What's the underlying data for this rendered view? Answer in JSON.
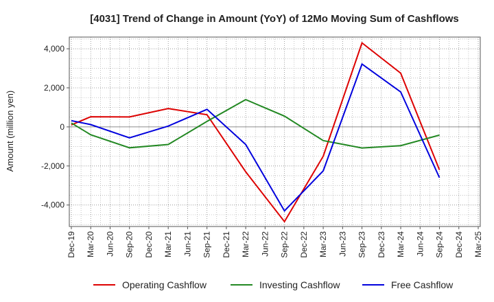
{
  "chart_data": {
    "type": "line",
    "title": "[4031]  Trend of Change in Amount (YoY) of 12Mo Moving Sum of Cashflows",
    "xlabel": "",
    "ylabel": "Amount (million yen)",
    "ylim": [
      -5100,
      4600
    ],
    "yticks": [
      4000,
      2000,
      0,
      -2000,
      -4000
    ],
    "ytick_labels": [
      "4,000",
      "2,000",
      "0",
      "-2,000",
      "-4,000"
    ],
    "grid": true,
    "legend_position": "bottom",
    "categories": [
      "Dec-19",
      "Mar-20",
      "Jun-20",
      "Sep-20",
      "Dec-20",
      "Mar-21",
      "Jun-21",
      "Sep-21",
      "Dec-21",
      "Mar-22",
      "Jun-22",
      "Sep-22",
      "Dec-22",
      "Mar-23",
      "Jun-23",
      "Sep-23",
      "Dec-23",
      "Mar-24",
      "Jun-24",
      "Sep-24",
      "Dec-24",
      "Mar-25"
    ],
    "series": [
      {
        "name": "Operating Cashflow",
        "color": "#dd0000",
        "values": [
          100,
          520,
          null,
          510,
          null,
          940,
          null,
          620,
          null,
          -2300,
          null,
          -4850,
          null,
          -1500,
          null,
          4300,
          null,
          2750,
          null,
          -2200,
          null,
          null
        ]
      },
      {
        "name": "Investing Cashflow",
        "color": "#228822",
        "values": [
          200,
          -400,
          null,
          -1070,
          null,
          -900,
          null,
          280,
          null,
          1400,
          null,
          550,
          null,
          -700,
          null,
          -1080,
          null,
          -960,
          null,
          -420,
          null,
          null
        ]
      },
      {
        "name": "Free Cashflow",
        "color": "#0000dd",
        "values": [
          320,
          120,
          null,
          -560,
          null,
          40,
          null,
          900,
          null,
          -900,
          null,
          -4300,
          null,
          -2250,
          null,
          3220,
          null,
          1790,
          null,
          -2600,
          null,
          null
        ]
      }
    ]
  }
}
